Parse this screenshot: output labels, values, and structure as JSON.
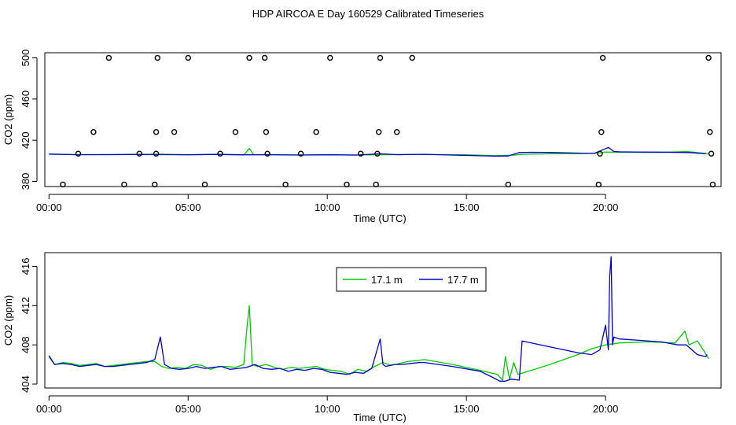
{
  "title": "HDP AIRCOA E  Day 160529  Calibrated Timeseries",
  "colors": {
    "green": "#00cc00",
    "blue": "#0000cc",
    "axis": "#000000"
  },
  "chart_data": [
    {
      "id": "top",
      "type": "line",
      "xlabel": "Time (UTC)",
      "ylabel": "CO2 (ppm)",
      "xlim": [
        -0.15,
        24.15
      ],
      "ylim": [
        375,
        505
      ],
      "xticks": [
        0,
        5,
        10,
        15,
        20
      ],
      "xtick_labels": [
        "00:00",
        "05:00",
        "10:00",
        "15:00",
        "20:00"
      ],
      "yticks": [
        380,
        420,
        460,
        500
      ],
      "ytick_labels": [
        "380",
        "420",
        "460",
        "500"
      ],
      "calibration_points": {
        "x": [
          0.5,
          1.05,
          1.6,
          2.15,
          2.7,
          3.25,
          3.8,
          3.85,
          3.9,
          3.85,
          4.5,
          5.0,
          5.6,
          6.15,
          6.7,
          7.2,
          7.75,
          7.8,
          7.85,
          8.5,
          9.05,
          9.6,
          10.1,
          10.7,
          11.2,
          11.75,
          11.8,
          11.85,
          11.9,
          12.5,
          13.05,
          16.5,
          19.75,
          19.8,
          19.85,
          19.9,
          23.7,
          23.75,
          23.8,
          23.85
        ],
        "y": [
          377,
          407,
          428,
          500,
          377,
          407,
          377,
          407,
          500,
          428,
          428,
          500,
          377,
          407,
          428,
          500,
          500,
          428,
          407,
          377,
          407,
          428,
          500,
          377,
          407,
          377,
          407,
          428,
          500,
          428,
          500,
          377,
          377,
          407,
          428,
          500,
          500,
          428,
          407,
          377
        ]
      },
      "series": [
        {
          "name": "17.1 m",
          "color": "#00cc00",
          "x": [
            0,
            1,
            2,
            3,
            4,
            5,
            6,
            7,
            7.2,
            7.35,
            8,
            9,
            10,
            11,
            12,
            13,
            14,
            15,
            16,
            16.7,
            17,
            18,
            19,
            19.7,
            20,
            20.5,
            21,
            22,
            22.9,
            23.5,
            23.7
          ],
          "y": [
            406.5,
            405.9,
            406.0,
            406.1,
            405.9,
            405.8,
            406.2,
            405.7,
            412,
            406,
            405.9,
            405.7,
            405.8,
            405.6,
            405.9,
            406.1,
            406.0,
            405.8,
            405.0,
            405.5,
            406.3,
            406.8,
            407.0,
            407.5,
            408.5,
            408.3,
            408.3,
            408.2,
            409.0,
            407.5,
            406.6
          ]
        },
        {
          "name": "17.7 m",
          "color": "#0000cc",
          "x": [
            0,
            1,
            2,
            3,
            4,
            5,
            6,
            7,
            8,
            9,
            10,
            11,
            11.9,
            12.5,
            13.5,
            16,
            16.5,
            16.9,
            17.3,
            18,
            19,
            19.6,
            20.1,
            20.3,
            20.5,
            21,
            22,
            23,
            23.6
          ],
          "y": [
            406.5,
            406.0,
            406.0,
            406.1,
            406.3,
            405.9,
            406.2,
            405.8,
            405.9,
            405.6,
            405.8,
            405.6,
            406.8,
            406.0,
            406.3,
            404.5,
            404.7,
            408.0,
            408.3,
            408.1,
            407.5,
            407.2,
            413,
            409.0,
            408.7,
            408.6,
            408.4,
            408.0,
            406.8
          ]
        }
      ]
    },
    {
      "id": "bottom",
      "type": "line",
      "xlabel": "Time (UTC)",
      "ylabel": "CO2 (ppm)",
      "xlim": [
        -0.15,
        24.15
      ],
      "ylim": [
        403.6,
        417.4
      ],
      "xticks": [
        0,
        5,
        10,
        15,
        20
      ],
      "xtick_labels": [
        "00:00",
        "05:00",
        "10:00",
        "15:00",
        "20:00"
      ],
      "yticks": [
        404,
        408,
        412,
        416
      ],
      "ytick_labels": [
        "404",
        "408",
        "412",
        "416"
      ],
      "legend": {
        "position": "top-center",
        "labels": [
          "17.1 m",
          "17.7 m"
        ]
      },
      "series": [
        {
          "name": "17.1 m",
          "color": "#00cc00",
          "x": [
            0,
            0.2,
            0.5,
            0.8,
            1.1,
            1.4,
            1.7,
            2.0,
            2.3,
            2.6,
            2.9,
            3.2,
            3.5,
            3.8,
            4.05,
            4.3,
            4.6,
            4.9,
            5.2,
            5.5,
            5.8,
            6.1,
            6.4,
            6.7,
            7.0,
            7.12,
            7.2,
            7.3,
            7.5,
            7.8,
            8.1,
            8.4,
            8.7,
            9.0,
            9.3,
            9.6,
            9.9,
            10.2,
            10.5,
            10.8,
            11.1,
            11.4,
            11.7,
            12.0,
            12.3,
            12.6,
            12.9,
            13.2,
            13.5,
            14.5,
            15.5,
            16.1,
            16.3,
            16.4,
            16.55,
            16.7,
            16.85,
            17.1,
            18.0,
            19.0,
            19.5,
            20.0,
            20.5,
            21.5,
            22.5,
            22.85,
            23.0,
            23.3,
            23.55,
            23.7
          ],
          "y": [
            406.8,
            406.0,
            406.2,
            406.1,
            405.9,
            406.0,
            406.1,
            405.8,
            405.9,
            406.0,
            406.1,
            406.2,
            406.3,
            406.3,
            405.8,
            405.6,
            405.7,
            405.6,
            406.0,
            405.9,
            405.5,
            405.8,
            405.8,
            405.7,
            406.0,
            410.0,
            412.0,
            406.0,
            405.8,
            406.0,
            405.7,
            405.5,
            405.7,
            405.6,
            405.7,
            405.8,
            405.5,
            405.4,
            405.3,
            405.0,
            405.5,
            405.3,
            405.8,
            406.2,
            405.9,
            406.1,
            406.3,
            406.4,
            406.5,
            406.0,
            405.4,
            405.0,
            404.4,
            406.8,
            404.5,
            406.2,
            405.0,
            405.2,
            406.0,
            407.0,
            407.6,
            408.0,
            408.2,
            408.3,
            408.2,
            409.4,
            408.0,
            408.4,
            407.3,
            406.6
          ]
        },
        {
          "name": "17.7 m",
          "color": "#0000cc",
          "x": [
            0,
            0.2,
            0.5,
            0.8,
            1.1,
            1.4,
            1.7,
            2.0,
            2.3,
            2.6,
            2.9,
            3.2,
            3.5,
            3.8,
            4.0,
            4.15,
            4.4,
            4.7,
            5.0,
            5.3,
            5.6,
            5.9,
            6.2,
            6.5,
            6.8,
            7.1,
            7.4,
            7.7,
            8.0,
            8.3,
            8.6,
            8.9,
            9.2,
            9.5,
            9.8,
            10.1,
            10.4,
            10.7,
            11.0,
            11.3,
            11.6,
            11.9,
            12.0,
            12.1,
            12.4,
            12.7,
            13.0,
            13.3,
            13.5,
            14.5,
            15.5,
            16.0,
            16.2,
            16.4,
            16.6,
            16.9,
            17.0,
            18.0,
            19.0,
            19.5,
            19.8,
            20.0,
            20.1,
            20.15,
            20.2,
            20.25,
            20.3,
            20.5,
            21.0,
            22.0,
            22.6,
            22.9,
            23.3,
            23.6,
            23.65
          ],
          "y": [
            406.9,
            406.0,
            406.1,
            406.0,
            405.8,
            405.9,
            406.0,
            405.8,
            405.8,
            405.9,
            406.0,
            406.1,
            406.2,
            406.5,
            408.8,
            406.0,
            405.6,
            405.5,
            405.6,
            405.8,
            405.6,
            405.7,
            405.8,
            405.5,
            405.6,
            405.7,
            406.0,
            405.6,
            405.5,
            405.6,
            405.3,
            405.5,
            405.4,
            405.6,
            405.5,
            405.2,
            405.1,
            405.0,
            405.2,
            405.1,
            405.6,
            408.6,
            406.0,
            405.8,
            406.0,
            406.0,
            406.1,
            406.2,
            406.2,
            405.8,
            405.3,
            404.6,
            404.3,
            404.3,
            404.5,
            404.4,
            408.4,
            407.8,
            407.2,
            407.0,
            407.5,
            410.0,
            407.5,
            415.0,
            417.0,
            408.0,
            408.8,
            408.6,
            408.5,
            408.3,
            408.0,
            408.0,
            407.0,
            406.8,
            407.0
          ]
        }
      ]
    }
  ]
}
